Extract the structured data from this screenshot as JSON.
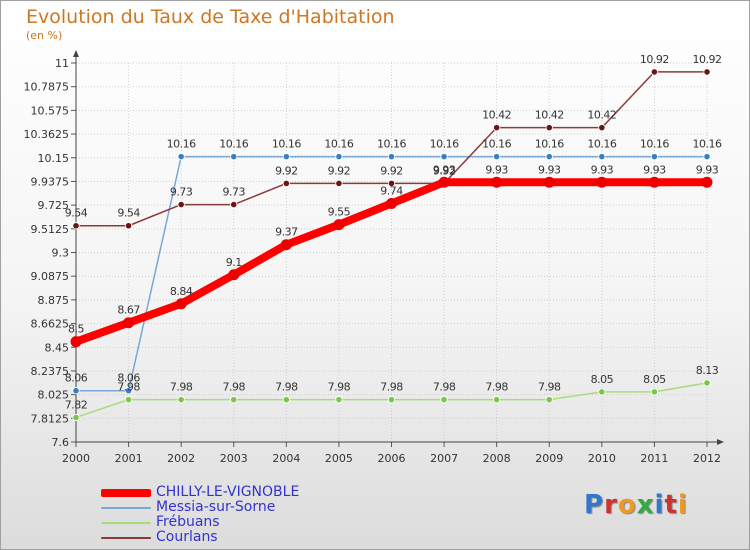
{
  "title": "Evolution du Taux de Taxe d'Habitation",
  "unit_label": "(en %)",
  "logo_text": "Proxiti",
  "logo_colors": [
    "#3377cc",
    "#cc3333",
    "#ee9922",
    "#33aa44",
    "#3377cc",
    "#cc3333",
    "#ee9922"
  ],
  "chart_data": {
    "type": "line",
    "x": [
      "2000",
      "2001",
      "2002",
      "2003",
      "2004",
      "2005",
      "2006",
      "2007",
      "2008",
      "2009",
      "2010",
      "2011",
      "2012"
    ],
    "ylim": [
      7.6,
      11
    ],
    "yticks": [
      "7.6",
      "7.8125",
      "8.025",
      "8.2375",
      "8.45",
      "8.6625",
      "8.875",
      "9.0875",
      "9.3",
      "9.5125",
      "9.725",
      "9.9375",
      "10.15",
      "10.3625",
      "10.575",
      "10.7875",
      "11"
    ],
    "grid": true,
    "legend_position": "bottom-left",
    "series": [
      {
        "name": "CHILLY-LE-VIGNOBLE",
        "color": "#ff0000",
        "point_color": "#ee0000",
        "line_width": 8,
        "marker_radius": 5.5,
        "values": [
          8.5,
          8.67,
          8.84,
          9.1,
          9.37,
          9.55,
          9.74,
          9.93,
          9.93,
          9.93,
          9.93,
          9.93,
          9.93
        ],
        "labels": [
          "8.5",
          "8.67",
          "8.84",
          "9.1",
          "9.37",
          "9.55",
          "9.74",
          "9.93",
          "9.93",
          "9.93",
          "9.93",
          "9.93",
          "9.93"
        ]
      },
      {
        "name": "Messia-sur-Sorne",
        "color": "#7aa6d6",
        "point_color": "#3a7fc4",
        "line_width": 1.5,
        "marker_radius": 3.2,
        "values": [
          8.06,
          8.06,
          10.16,
          10.16,
          10.16,
          10.16,
          10.16,
          10.16,
          10.16,
          10.16,
          10.16,
          10.16,
          10.16
        ],
        "labels": [
          "8.06",
          "8.06",
          "10.16",
          "10.16",
          "10.16",
          "10.16",
          "10.16",
          "10.16",
          "10.16",
          "10.16",
          "10.16",
          "10.16",
          "10.16"
        ]
      },
      {
        "name": "Frébuans",
        "color": "#a6dd7a",
        "point_color": "#77c944",
        "line_width": 1.5,
        "marker_radius": 3.2,
        "values": [
          7.82,
          7.98,
          7.98,
          7.98,
          7.98,
          7.98,
          7.98,
          7.98,
          7.98,
          7.98,
          8.05,
          8.05,
          8.13
        ],
        "labels": [
          "7.82",
          "7.98",
          "7.98",
          "7.98",
          "7.98",
          "7.98",
          "7.98",
          "7.98",
          "7.98",
          "7.98",
          "8.05",
          "8.05",
          "8.13"
        ]
      },
      {
        "name": "Courlans",
        "color": "#8a3a3a",
        "point_color": "#6a1515",
        "line_width": 1.5,
        "marker_radius": 3.2,
        "values": [
          9.54,
          9.54,
          9.73,
          9.73,
          9.92,
          9.92,
          9.92,
          9.92,
          10.42,
          10.42,
          10.42,
          10.92,
          10.92
        ],
        "labels": [
          "9.54",
          "9.54",
          "9.73",
          "9.73",
          "9.92",
          "9.92",
          "9.92",
          "9.92",
          "10.42",
          "10.42",
          "10.42",
          "10.92",
          "10.92"
        ]
      }
    ]
  }
}
